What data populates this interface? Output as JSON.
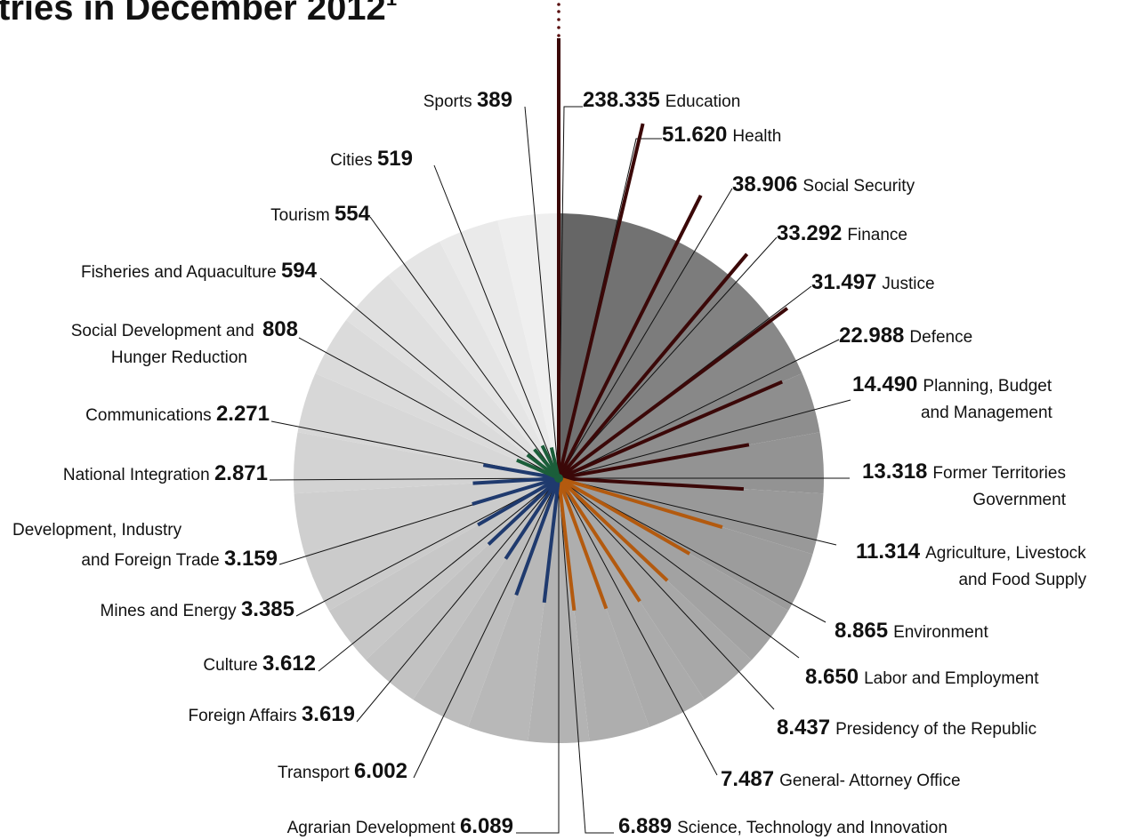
{
  "chart_data": {
    "type": "pie",
    "title": "tries in December 2012",
    "title_superscript": "1",
    "slices": [
      {
        "label": "Education",
        "label_lines": [
          "Education"
        ],
        "value_text": "238.335",
        "value": 238335,
        "color": "#3b0808"
      },
      {
        "label": "Health",
        "label_lines": [
          "Health"
        ],
        "value_text": "51.620",
        "value": 51620,
        "color": "#3b0808"
      },
      {
        "label": "Social Security",
        "label_lines": [
          "Social Security"
        ],
        "value_text": "38.906",
        "value": 38906,
        "color": "#3b0808"
      },
      {
        "label": "Finance",
        "label_lines": [
          "Finance"
        ],
        "value_text": "33.292",
        "value": 33292,
        "color": "#3b0808"
      },
      {
        "label": "Justice",
        "label_lines": [
          "Justice"
        ],
        "value_text": "31.497",
        "value": 31497,
        "color": "#3b0808"
      },
      {
        "label": "Defence",
        "label_lines": [
          "Defence"
        ],
        "value_text": "22.988",
        "value": 22988,
        "color": "#3b0808"
      },
      {
        "label": "Planning, Budget and Management",
        "label_lines": [
          "Planning, Budget",
          "and Management"
        ],
        "value_text": "14.490",
        "value": 14490,
        "color": "#3b0808"
      },
      {
        "label": "Former Territories Government",
        "label_lines": [
          "Former Territories",
          "Government"
        ],
        "value_text": "13.318",
        "value": 13318,
        "color": "#3b0808"
      },
      {
        "label": "Agriculture, Livestock and Food Supply",
        "label_lines": [
          "Agriculture, Livestock",
          "and Food Supply"
        ],
        "value_text": "11.314",
        "value": 11314,
        "color": "#b35a0f"
      },
      {
        "label": "Environment",
        "label_lines": [
          "Environment"
        ],
        "value_text": "8.865",
        "value": 8865,
        "color": "#b35a0f"
      },
      {
        "label": "Labor and Employment",
        "label_lines": [
          "Labor and Employment"
        ],
        "value_text": "8.650",
        "value": 8650,
        "color": "#b35a0f"
      },
      {
        "label": "Presidency of the Republic",
        "label_lines": [
          "Presidency of the Republic"
        ],
        "value_text": "8.437",
        "value": 8437,
        "color": "#b35a0f"
      },
      {
        "label": "General- Attorney Office",
        "label_lines": [
          "General- Attorney Office"
        ],
        "value_text": "7.487",
        "value": 7487,
        "color": "#b35a0f"
      },
      {
        "label": "Science, Technology and Innovation",
        "label_lines": [
          "Science, Technology and Innovation"
        ],
        "value_text": "6.889",
        "value": 6889,
        "color": "#b35a0f"
      },
      {
        "label": "Agrarian Development",
        "label_lines": [
          "Agrarian Development"
        ],
        "value_text": "6.089",
        "value": 6089,
        "color": "#1f3a6e"
      },
      {
        "label": "Transport",
        "label_lines": [
          "Transport"
        ],
        "value_text": "6.002",
        "value": 6002,
        "color": "#1f3a6e"
      },
      {
        "label": "Foreign Affairs",
        "label_lines": [
          "Foreign Affairs"
        ],
        "value_text": "3.619",
        "value": 3619,
        "color": "#1f3a6e"
      },
      {
        "label": "Culture",
        "label_lines": [
          "Culture"
        ],
        "value_text": "3.612",
        "value": 3612,
        "color": "#1f3a6e"
      },
      {
        "label": "Mines and Energy",
        "label_lines": [
          "Mines and Energy"
        ],
        "value_text": "3.385",
        "value": 3385,
        "color": "#1f3a6e"
      },
      {
        "label": "Development, Industry and Foreign Trade",
        "label_lines": [
          "Development, Industry",
          "and Foreign Trade"
        ],
        "value_text": "3.159",
        "value": 3159,
        "color": "#1f3a6e"
      },
      {
        "label": "National Integration",
        "label_lines": [
          "National Integration"
        ],
        "value_text": "2.871",
        "value": 2871,
        "color": "#1f3a6e"
      },
      {
        "label": "Communications",
        "label_lines": [
          "Communications"
        ],
        "value_text": "2.271",
        "value": 2271,
        "color": "#1f3a6e"
      },
      {
        "label": "Social Development and Hunger Reduction",
        "label_lines": [
          "Social Development and",
          "Hunger Reduction"
        ],
        "value_text": "808",
        "value": 808,
        "color": "#1b5e3a"
      },
      {
        "label": "Fisheries and Aquaculture",
        "label_lines": [
          "Fisheries and Aquaculture"
        ],
        "value_text": "594",
        "value": 594,
        "color": "#1b5e3a"
      },
      {
        "label": "Tourism",
        "label_lines": [
          "Tourism"
        ],
        "value_text": "554",
        "value": 554,
        "color": "#1b5e3a"
      },
      {
        "label": "Cities",
        "label_lines": [
          "Cities"
        ],
        "value_text": "519",
        "value": 519,
        "color": "#1b5e3a"
      },
      {
        "label": "Sports",
        "label_lines": [
          "Sports"
        ],
        "value_text": "389",
        "value": 389,
        "color": "#1b5e3a"
      }
    ],
    "background_colors": [
      "#666666",
      "#727272",
      "#7c7c7c",
      "#828282",
      "#888888",
      "#8e8e8e",
      "#939393",
      "#999999",
      "#9c9c9c",
      "#a2a2a2",
      "#a8a8a8",
      "#ababab",
      "#aeaeae",
      "#b3b3b3",
      "#b8b8b8",
      "#bdbdbd",
      "#c2c2c2",
      "#c7c7c7",
      "#cbcbcb",
      "#cfcfcf",
      "#d3d3d3",
      "#d7d7d7",
      "#dbdbdb",
      "#e0e0e0",
      "#e5e5e5",
      "#eaeaea",
      "#efefef"
    ]
  }
}
